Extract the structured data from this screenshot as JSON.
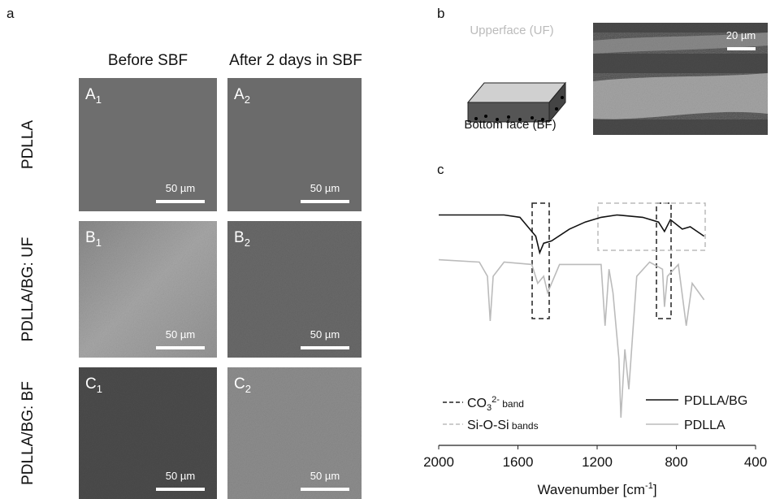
{
  "panels": {
    "a": "a",
    "b": "b",
    "c": "c"
  },
  "columns": [
    "Before SBF",
    "After 2 days in SBF"
  ],
  "rows": [
    "PDLLA",
    "PDLLA/BG: UF",
    "PDLLA/BG: BF"
  ],
  "tiles": [
    [
      {
        "letter": "A",
        "sub": "1"
      },
      {
        "letter": "A",
        "sub": "2"
      }
    ],
    [
      {
        "letter": "B",
        "sub": "1"
      },
      {
        "letter": "B",
        "sub": "2"
      }
    ],
    [
      {
        "letter": "C",
        "sub": "1"
      },
      {
        "letter": "C",
        "sub": "2"
      }
    ]
  ],
  "scale_bar_micrograph": "50 µm",
  "schematic": {
    "upper": "Upperface (UF)",
    "bottom": "Bottom face (BF)",
    "scale_bar": "20 µm"
  },
  "chart_data": {
    "type": "line",
    "xlabel": {
      "text": "Wavenumber [cm",
      "sup": "-1",
      "end": "]"
    },
    "xlim": [
      2000,
      400
    ],
    "xticks": [
      2000,
      1600,
      1200,
      800,
      400
    ],
    "ylim": [
      0,
      100
    ],
    "series": [
      {
        "name": "PDLLA/BG",
        "color": "#111111",
        "x": [
          2000,
          1670,
          1590,
          1550,
          1510,
          1490,
          1470,
          1430,
          1340,
          1260,
          1180,
          1100,
          970,
          890,
          860,
          830,
          770,
          730,
          660
        ],
        "values": [
          95,
          95,
          94,
          90,
          86,
          79,
          83,
          84,
          89,
          92,
          94,
          95,
          94,
          92,
          88,
          93,
          89,
          90,
          86
        ]
      },
      {
        "name": "PDLLA",
        "color": "#bbbbbb",
        "x": [
          2000,
          1795,
          1754,
          1740,
          1725,
          1670,
          1530,
          1500,
          1470,
          1450,
          1390,
          1180,
          1160,
          1140,
          1120,
          1090,
          1080,
          1060,
          1040,
          1000,
          935,
          870,
          860,
          845,
          790,
          750,
          720,
          660
        ],
        "values": [
          76,
          75,
          69,
          50,
          69,
          75,
          74,
          66,
          69,
          62,
          74,
          74,
          48,
          72,
          62,
          34,
          9,
          38,
          21,
          69,
          75,
          72,
          56,
          69,
          74,
          48,
          66,
          59
        ]
      }
    ],
    "bands": [
      {
        "label": "CO",
        "sub": "3",
        "sup": "2-",
        "small": " band"
      },
      {
        "label": "Si-O-Si",
        "small": " bands"
      }
    ]
  }
}
